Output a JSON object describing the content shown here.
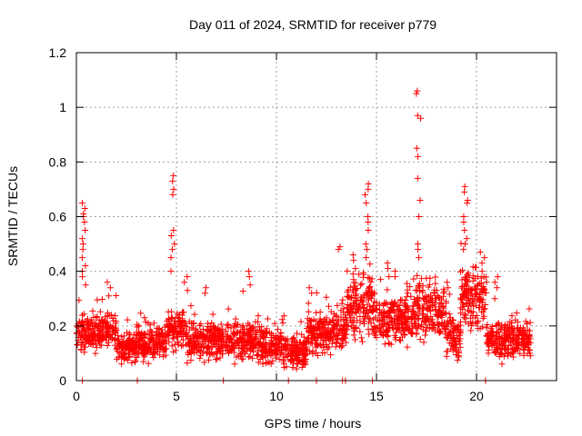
{
  "chart_data": {
    "type": "scatter",
    "title": "Day 011 of 2024, SRMTID for receiver p779",
    "xlabel": "GPS time / hours",
    "ylabel": "SRMTID / TECUs",
    "xlim": [
      0,
      24
    ],
    "ylim": [
      0,
      1.2
    ],
    "x_ticks": [
      0,
      5,
      10,
      15,
      20
    ],
    "y_ticks": [
      0,
      0.2,
      0.4,
      0.6,
      0.8,
      1,
      1.2
    ],
    "x_tick_labels": [
      "0",
      "5",
      "10",
      "15",
      "20"
    ],
    "y_tick_labels": [
      "0",
      "0.2",
      "0.4",
      "0.6",
      "0.8",
      "1",
      "1.2"
    ],
    "grid": true,
    "marker": "+",
    "color": "#ff0000",
    "time_range": [
      0,
      22.75
    ],
    "baseline_segments": [
      {
        "t0": 0.0,
        "t1": 1.0,
        "lo": 0.1,
        "hi": 0.24
      },
      {
        "t0": 1.0,
        "t1": 2.0,
        "lo": 0.12,
        "hi": 0.25
      },
      {
        "t0": 2.0,
        "t1": 3.0,
        "lo": 0.07,
        "hi": 0.17
      },
      {
        "t0": 3.0,
        "t1": 4.5,
        "lo": 0.07,
        "hi": 0.2
      },
      {
        "t0": 4.5,
        "t1": 5.5,
        "lo": 0.12,
        "hi": 0.26
      },
      {
        "t0": 5.5,
        "t1": 7.5,
        "lo": 0.07,
        "hi": 0.22
      },
      {
        "t0": 7.5,
        "t1": 9.0,
        "lo": 0.07,
        "hi": 0.22
      },
      {
        "t0": 9.0,
        "t1": 10.5,
        "lo": 0.06,
        "hi": 0.2
      },
      {
        "t0": 10.5,
        "t1": 11.5,
        "lo": 0.04,
        "hi": 0.17
      },
      {
        "t0": 11.5,
        "t1": 13.5,
        "lo": 0.1,
        "hi": 0.25
      },
      {
        "t0": 13.5,
        "t1": 14.8,
        "lo": 0.15,
        "hi": 0.42
      },
      {
        "t0": 14.8,
        "t1": 16.5,
        "lo": 0.12,
        "hi": 0.32
      },
      {
        "t0": 16.5,
        "t1": 18.5,
        "lo": 0.13,
        "hi": 0.38
      },
      {
        "t0": 18.5,
        "t1": 19.2,
        "lo": 0.08,
        "hi": 0.25
      },
      {
        "t0": 19.2,
        "t1": 20.5,
        "lo": 0.18,
        "hi": 0.42
      },
      {
        "t0": 20.5,
        "t1": 22.75,
        "lo": 0.08,
        "hi": 0.22
      }
    ],
    "peaks": [
      {
        "t": 0.4,
        "values": [
          0.65,
          0.63,
          0.61,
          0.6,
          0.58,
          0.55,
          0.52,
          0.5,
          0.48,
          0.45,
          0.42,
          0.4,
          0.38,
          0.35
        ]
      },
      {
        "t": 4.8,
        "values": [
          0.75,
          0.73,
          0.7,
          0.68,
          0.55,
          0.53,
          0.5,
          0.48,
          0.45,
          0.4
        ]
      },
      {
        "t": 14.5,
        "values": [
          0.72,
          0.7,
          0.68,
          0.65,
          0.6,
          0.58,
          0.55,
          0.5,
          0.48,
          0.45
        ]
      },
      {
        "t": 17.1,
        "values": [
          1.06,
          1.05,
          0.97,
          0.96,
          0.85,
          0.82,
          0.74,
          0.66,
          0.6,
          0.5,
          0.48,
          0.45
        ]
      },
      {
        "t": 19.45,
        "values": [
          0.71,
          0.69,
          0.66,
          0.65,
          0.6,
          0.58,
          0.55,
          0.52,
          0.5,
          0.48
        ]
      },
      {
        "t": 20.3,
        "values": [
          0.47,
          0.45,
          0.43,
          0.4,
          0.38
        ]
      },
      {
        "t": 13.9,
        "values": [
          0.46,
          0.44,
          0.41,
          0.39,
          0.37
        ]
      },
      {
        "t": 8.6,
        "values": [
          0.4,
          0.38,
          0.35
        ]
      },
      {
        "t": 1.6,
        "values": [
          0.36,
          0.34,
          0.31
        ]
      },
      {
        "t": 5.5,
        "values": [
          0.38,
          0.36,
          0.33
        ]
      },
      {
        "t": 6.5,
        "values": [
          0.34,
          0.32
        ]
      },
      {
        "t": 11.7,
        "values": [
          0.34,
          0.32
        ]
      },
      {
        "t": 13.2,
        "values": [
          0.49,
          0.48
        ]
      },
      {
        "t": 15.6,
        "values": [
          0.43,
          0.41,
          0.38
        ]
      },
      {
        "t": 16.0,
        "values": [
          0.4,
          0.38
        ]
      },
      {
        "t": 18.5,
        "values": [
          0.36,
          0.34
        ]
      },
      {
        "t": 21.0,
        "values": [
          0.38,
          0.36,
          0.34,
          0.3
        ]
      }
    ],
    "zero_points": [
      0.3,
      3.05,
      7.35,
      10.6,
      12.0,
      13.3,
      13.45,
      14.8,
      20.45
    ]
  }
}
